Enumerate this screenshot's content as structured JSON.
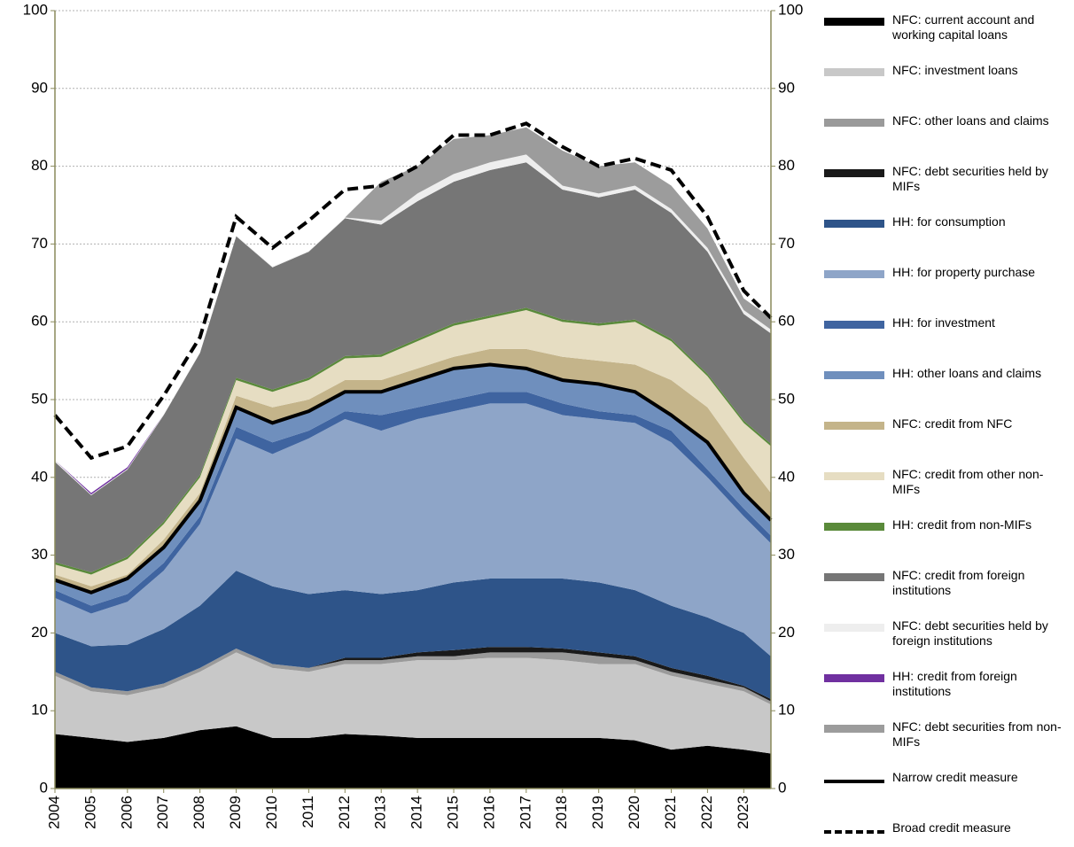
{
  "chart_data": {
    "type": "stacked_area",
    "x": [
      2004,
      2005,
      2006,
      2007,
      2008,
      2009,
      2010,
      2011,
      2012,
      2013,
      2014,
      2015,
      2016,
      2017,
      2018,
      2019,
      2020,
      2021,
      2022,
      2023,
      2023.75
    ],
    "xlim": [
      2004,
      2023.75
    ],
    "xticks": [
      2004,
      2005,
      2006,
      2007,
      2008,
      2009,
      2010,
      2011,
      2012,
      2013,
      2014,
      2015,
      2016,
      2017,
      2018,
      2019,
      2020,
      2021,
      2022,
      2023
    ],
    "ylim": [
      0,
      100
    ],
    "yticks": [
      0,
      10,
      20,
      30,
      40,
      50,
      60,
      70,
      80,
      90,
      100
    ],
    "y2lim": [
      0,
      100
    ],
    "y2ticks": [
      0,
      10,
      20,
      30,
      40,
      50,
      60,
      70,
      80,
      90,
      100
    ],
    "grid": true,
    "legend": "right",
    "series": [
      {
        "name": "NFC: current account and working capital loans",
        "color": "#000000",
        "kind": "area",
        "values": [
          7,
          6.5,
          6,
          6.5,
          7.5,
          8,
          6.5,
          6.5,
          7,
          6.8,
          6.5,
          6.5,
          6.5,
          6.5,
          6.5,
          6.5,
          6.2,
          5,
          5.5,
          5,
          4.5
        ]
      },
      {
        "name": "NFC: investment loans",
        "color": "#c8c8c8",
        "kind": "area",
        "values": [
          7.5,
          6,
          6,
          6.5,
          7.5,
          9.5,
          9,
          8.5,
          9,
          9.2,
          10,
          10,
          10.3,
          10.3,
          10,
          9.5,
          9.8,
          9.5,
          8,
          7.5,
          6.3
        ]
      },
      {
        "name": "NFC: other loans and claims",
        "color": "#9a9a9a",
        "kind": "area",
        "values": [
          0.5,
          0.5,
          0.5,
          0.5,
          0.5,
          0.5,
          0.5,
          0.5,
          0.5,
          0.5,
          0.5,
          0.5,
          0.7,
          0.7,
          1,
          1,
          0.5,
          0.5,
          0.5,
          0.5,
          0.4
        ]
      },
      {
        "name": "NFC: debt securities held by MIFs",
        "color": "#1a1a1a",
        "kind": "area",
        "values": [
          0,
          0,
          0,
          0,
          0,
          0,
          0,
          0,
          0.3,
          0.3,
          0.5,
          0.8,
          0.7,
          0.7,
          0.5,
          0.5,
          0.5,
          0.5,
          0.5,
          0.2,
          0.3
        ]
      },
      {
        "name": "HH: for consumption",
        "color": "#2e5489",
        "kind": "area",
        "values": [
          5,
          5.3,
          6,
          7,
          8,
          10,
          10,
          9.5,
          8.7,
          8.2,
          8,
          8.7,
          8.8,
          8.8,
          9,
          9,
          8.5,
          8,
          7.5,
          6.8,
          5.5
        ]
      },
      {
        "name": "HH: for property purchase",
        "color": "#8ea5c8",
        "kind": "area",
        "values": [
          4.5,
          4.2,
          5.5,
          7.5,
          10.5,
          17,
          17,
          20,
          22,
          21,
          22,
          22,
          22.5,
          22.5,
          21,
          21,
          21.5,
          21,
          18,
          15,
          14.5
        ]
      },
      {
        "name": "HH: for investment",
        "color": "#3f64a0",
        "kind": "area",
        "values": [
          1,
          1,
          1,
          1,
          1,
          1.5,
          1.5,
          1,
          1,
          2,
          1.5,
          1.5,
          1.5,
          1.5,
          1.5,
          1,
          1,
          1.5,
          1,
          1,
          1
        ]
      },
      {
        "name": "HH: other loans and claims",
        "color": "#6f8fbd",
        "kind": "area",
        "values": [
          1.3,
          1.7,
          2,
          2,
          2,
          2.5,
          2.5,
          2.5,
          2.5,
          3,
          3.5,
          4,
          3.5,
          3,
          3,
          3.5,
          3,
          2,
          3.5,
          2,
          2
        ]
      },
      {
        "name": "NFC: credit from NFC",
        "color": "#c4b48a",
        "kind": "area",
        "values": [
          0.7,
          0.8,
          0.5,
          1,
          1,
          1.5,
          2,
          1.5,
          1.5,
          1.5,
          1.5,
          1.5,
          2,
          2.5,
          3,
          3,
          3.5,
          4.5,
          4.5,
          4.5,
          3.5
        ]
      },
      {
        "name": "NFC: credit from other non-MIFs",
        "color": "#e6ddc2",
        "kind": "area",
        "values": [
          1.3,
          1.5,
          2,
          2,
          2,
          2,
          2,
          2.5,
          2.8,
          3,
          3.5,
          4,
          4,
          5,
          4.5,
          4.5,
          5.5,
          5,
          4,
          4.5,
          6
        ]
      },
      {
        "name": "HH: credit from non-MIFs",
        "color": "#5a8a3a",
        "kind": "area",
        "values": [
          0.3,
          0.3,
          0.3,
          0.3,
          0.3,
          0.3,
          0.3,
          0.3,
          0.3,
          0.3,
          0.3,
          0.3,
          0.3,
          0.3,
          0.3,
          0.3,
          0.3,
          0.3,
          0.3,
          0.3,
          0.3
        ]
      },
      {
        "name": "NFC: credit from foreign institutions",
        "color": "#767676",
        "kind": "area",
        "values": [
          12.9,
          9.9,
          11.2,
          13.7,
          15.7,
          18.2,
          15.7,
          16.2,
          17.7,
          16.7,
          17.7,
          18.2,
          18.7,
          18.7,
          16.7,
          16.2,
          16.7,
          16.2,
          15.7,
          13.7,
          14.2
        ]
      },
      {
        "name": "NFC: debt securities held by foreign institutions",
        "color": "#eeeeee",
        "kind": "area",
        "values": [
          0.2,
          0.1,
          0.1,
          0.1,
          0.1,
          0.1,
          0.1,
          0.1,
          0.1,
          0.5,
          1,
          1,
          1,
          1,
          0.5,
          0.5,
          0.5,
          0.5,
          0.5,
          0.5,
          0.5
        ]
      },
      {
        "name": "HH: credit from foreign institutions",
        "color": "#7030a0",
        "kind": "area",
        "values": [
          0,
          0.2,
          0.2,
          0,
          0,
          0,
          0,
          0,
          0,
          0,
          0,
          0,
          0,
          0,
          0,
          0,
          0,
          0,
          0,
          0,
          0
        ]
      },
      {
        "name": "NFC: debt securities from non-MIFs",
        "color": "#9c9c9c",
        "kind": "area",
        "values": [
          0,
          0,
          0,
          0,
          0,
          0,
          0,
          0,
          0,
          5,
          3.5,
          4.5,
          3.5,
          3.5,
          4.5,
          3.5,
          3,
          3,
          2.5,
          1.5,
          1.5
        ]
      },
      {
        "name": "Narrow credit measure",
        "color": "#000000",
        "kind": "line",
        "dashed": false,
        "values": [
          26.8,
          25.2,
          27,
          31,
          37,
          49,
          47,
          48.5,
          51,
          51,
          52.5,
          54,
          54.5,
          54,
          52.5,
          52,
          51,
          48,
          44.5,
          38,
          34.5
        ]
      },
      {
        "name": "Broad credit measure",
        "color": "#000000",
        "kind": "line",
        "dashed": true,
        "values": [
          48,
          42.5,
          44,
          50.5,
          58,
          73.5,
          69.5,
          73,
          77,
          77.5,
          80,
          84,
          84,
          85.5,
          82.5,
          80,
          81,
          79.5,
          73.5,
          64,
          60.5
        ]
      }
    ]
  }
}
